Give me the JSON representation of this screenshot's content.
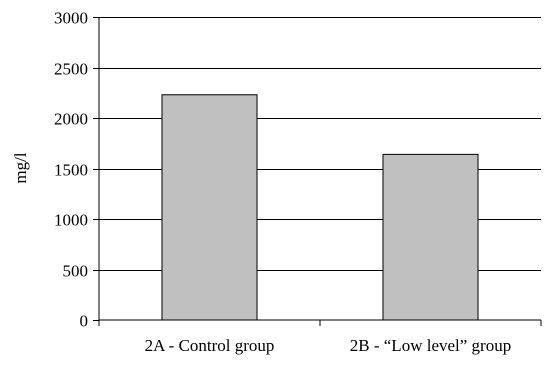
{
  "chart_data": {
    "type": "bar",
    "title": "",
    "xlabel": "",
    "ylabel": "mg/l",
    "categories": [
      "2A - Control group",
      "2B - “Low level”  group"
    ],
    "values": [
      2230,
      1640
    ],
    "ylim": [
      0,
      3000
    ],
    "yticks": [
      0,
      500,
      1000,
      1500,
      2000,
      2500,
      3000
    ],
    "grid": true,
    "legend": "none",
    "bar_color": "#c0c0c0",
    "bar_edge_color": "#000000",
    "gridline_color": "#000000"
  }
}
